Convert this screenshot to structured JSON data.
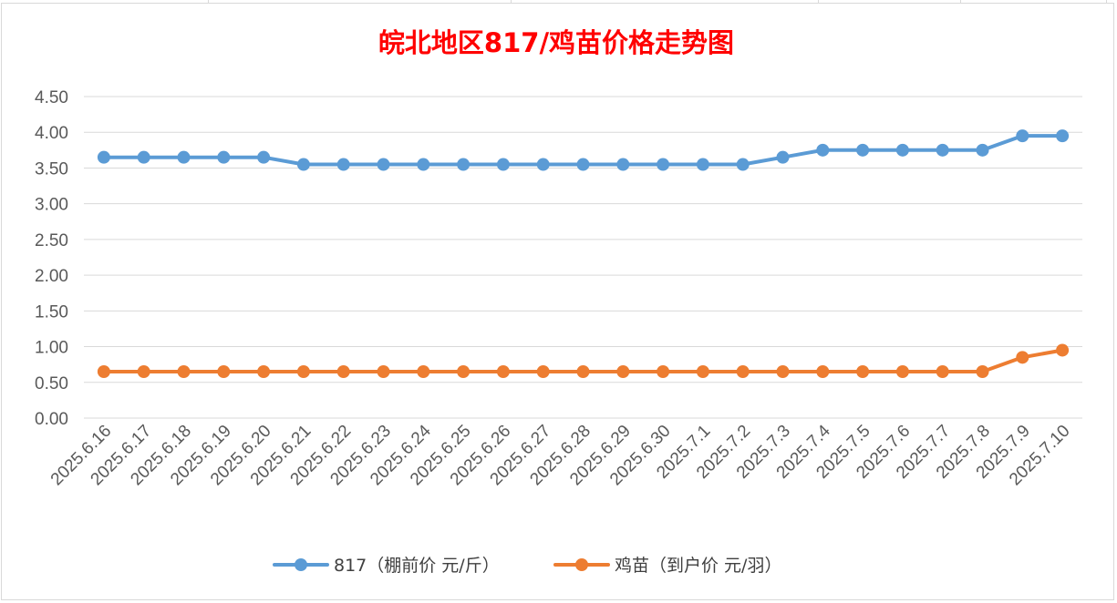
{
  "chart_data": {
    "type": "line",
    "title": "皖北地区817/鸡苗价格走势图",
    "categories": [
      "2025.6.16",
      "2025.6.17",
      "2025.6.18",
      "2025.6.19",
      "2025.6.20",
      "2025.6.21",
      "2025.6.22",
      "2025.6.23",
      "2025.6.24",
      "2025.6.25",
      "2025.6.26",
      "2025.6.27",
      "2025.6.28",
      "2025.6.29",
      "2025.6.30",
      "2025.7.1",
      "2025.7.2",
      "2025.7.3",
      "2025.7.4",
      "2025.7.5",
      "2025.7.6",
      "2025.7.7",
      "2025.7.8",
      "2025.7.9",
      "2025.7.10"
    ],
    "series": [
      {
        "name": "817（棚前价 元/斤）",
        "color": "#5b9bd5",
        "values": [
          3.65,
          3.65,
          3.65,
          3.65,
          3.65,
          3.55,
          3.55,
          3.55,
          3.55,
          3.55,
          3.55,
          3.55,
          3.55,
          3.55,
          3.55,
          3.55,
          3.55,
          3.65,
          3.75,
          3.75,
          3.75,
          3.75,
          3.75,
          3.95,
          3.95
        ]
      },
      {
        "name": "鸡苗（到户价 元/羽）",
        "color": "#ed7d31",
        "values": [
          0.65,
          0.65,
          0.65,
          0.65,
          0.65,
          0.65,
          0.65,
          0.65,
          0.65,
          0.65,
          0.65,
          0.65,
          0.65,
          0.65,
          0.65,
          0.65,
          0.65,
          0.65,
          0.65,
          0.65,
          0.65,
          0.65,
          0.65,
          0.85,
          0.95
        ]
      }
    ],
    "ylim": [
      0,
      4.5
    ],
    "yticks": [
      "0.00",
      "0.50",
      "1.00",
      "1.50",
      "2.00",
      "2.50",
      "3.00",
      "3.50",
      "4.00",
      "4.50"
    ],
    "grid": true,
    "legend_position": "bottom"
  }
}
